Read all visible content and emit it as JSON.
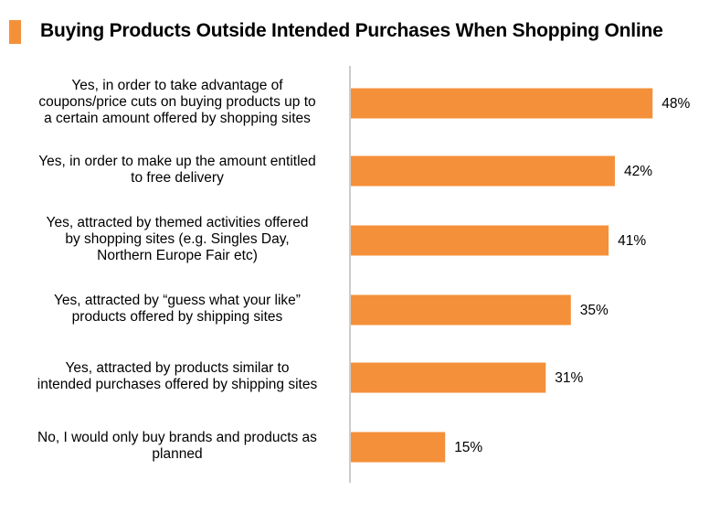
{
  "title": "Buying Products Outside Intended Purchases When Shopping Online",
  "colors": {
    "accent": "#F5903A",
    "axis": "#999999"
  },
  "chart_data": {
    "type": "bar",
    "orientation": "horizontal",
    "title": "Buying Products Outside Intended Purchases When Shopping Online",
    "categories": [
      [
        "Yes, in order to take advantage of",
        "coupons/price cuts on buying products up to",
        "a certain amount offered by shopping sites"
      ],
      [
        "Yes, in order to make up the amount entitled",
        "to free delivery"
      ],
      [
        "Yes, attracted by themed activities offered",
        "by shopping sites (e.g. Singles Day,",
        "Northern Europe Fair etc)"
      ],
      [
        "Yes, attracted by “guess what your like”",
        "products offered by shipping sites"
      ],
      [
        "Yes, attracted by products similar to",
        "intended purchases offered by shipping sites"
      ],
      [
        "No, I would only buy brands and products as",
        "planned"
      ]
    ],
    "values": [
      48,
      42,
      41,
      35,
      31,
      15
    ],
    "data_labels": [
      "48%",
      "42%",
      "41%",
      "35%",
      "31%",
      "15%"
    ],
    "unit": "%",
    "xlim": [
      0,
      55
    ],
    "grid": false,
    "legend": "none"
  }
}
